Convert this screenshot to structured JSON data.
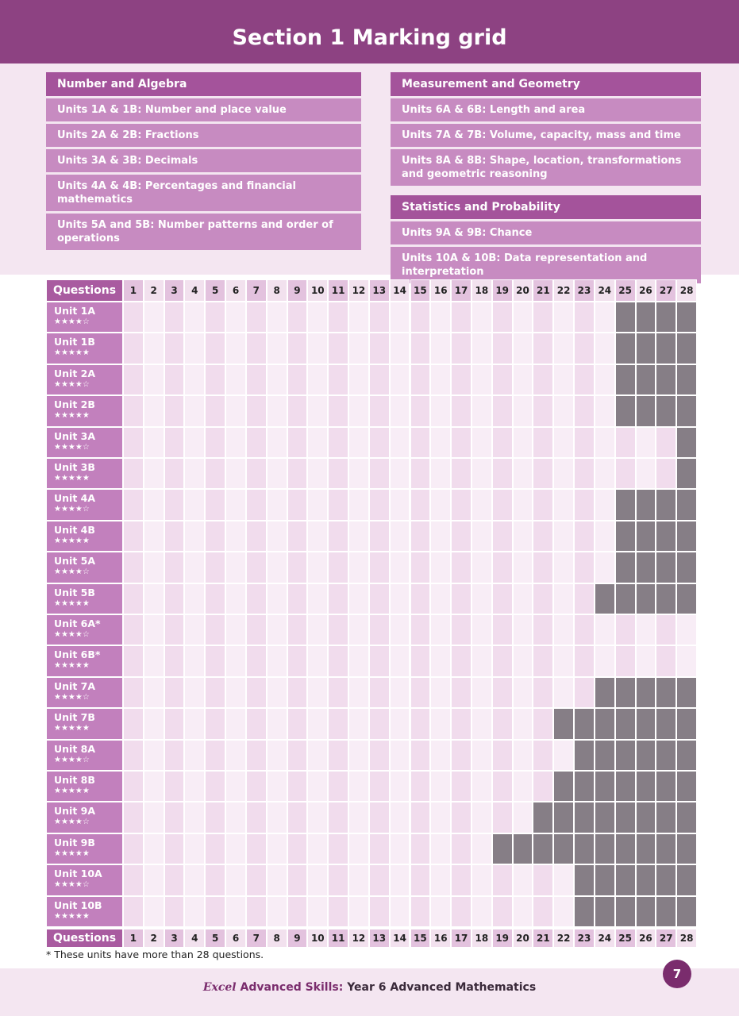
{
  "header": {
    "title": "Section 1 Marking grid"
  },
  "strands": [
    {
      "title": "Number and Algebra",
      "units": [
        "Units 1A & 1B: Number and place value",
        "Units 2A & 2B: Fractions",
        "Units 3A & 3B: Decimals",
        "Units 4A & 4B: Percentages and financial mathematics",
        "Units 5A and 5B: Number patterns and order of operations"
      ]
    },
    {
      "title": "Measurement and Geometry",
      "units": [
        "Units 6A & 6B: Length and area",
        "Units 7A & 7B: Volume, capacity, mass and time",
        "Units 8A & 8B: Shape, location, transformations and geometric reasoning"
      ]
    },
    {
      "title": "Statistics and Probability",
      "units": [
        "Units 9A & 9B: Chance",
        "Units 10A & 10B: Data representation and interpretation"
      ]
    }
  ],
  "grid": {
    "header": "Questions",
    "questions": [
      1,
      2,
      3,
      4,
      5,
      6,
      7,
      8,
      9,
      10,
      11,
      12,
      13,
      14,
      15,
      16,
      17,
      18,
      19,
      20,
      21,
      22,
      23,
      24,
      25,
      26,
      27,
      28
    ],
    "rows": [
      {
        "unit": "Unit 1A",
        "stars": "★★★★☆"
      },
      {
        "unit": "Unit 1B",
        "stars": "★★★★★"
      },
      {
        "unit": "Unit 2A",
        "stars": "★★★★☆"
      },
      {
        "unit": "Unit 2B",
        "stars": "★★★★★"
      },
      {
        "unit": "Unit 3A",
        "stars": "★★★★☆"
      },
      {
        "unit": "Unit 3B",
        "stars": "★★★★★"
      },
      {
        "unit": "Unit 4A",
        "stars": "★★★★☆"
      },
      {
        "unit": "Unit 4B",
        "stars": "★★★★★"
      },
      {
        "unit": "Unit 5A",
        "stars": "★★★★☆"
      },
      {
        "unit": "Unit 5B",
        "stars": "★★★★★"
      },
      {
        "unit": "Unit 6A*",
        "stars": "★★★★☆"
      },
      {
        "unit": "Unit 6B*",
        "stars": "★★★★★"
      },
      {
        "unit": "Unit 7A",
        "stars": "★★★★☆"
      },
      {
        "unit": "Unit 7B",
        "stars": "★★★★★"
      },
      {
        "unit": "Unit 8A",
        "stars": "★★★★☆"
      },
      {
        "unit": "Unit 8B",
        "stars": "★★★★★"
      },
      {
        "unit": "Unit 9A",
        "stars": "★★★★☆"
      },
      {
        "unit": "Unit 9B",
        "stars": "★★★★★"
      },
      {
        "unit": "Unit 10A",
        "stars": "★★★★☆"
      },
      {
        "unit": "Unit 10B",
        "stars": "★★★★★"
      }
    ]
  },
  "footnote": "* These units have more than 28 questions.",
  "footer": {
    "brand": "Excel",
    "series": "Advanced Skills:",
    "title": "Year 6 Advanced Mathematics",
    "page": 7
  }
}
